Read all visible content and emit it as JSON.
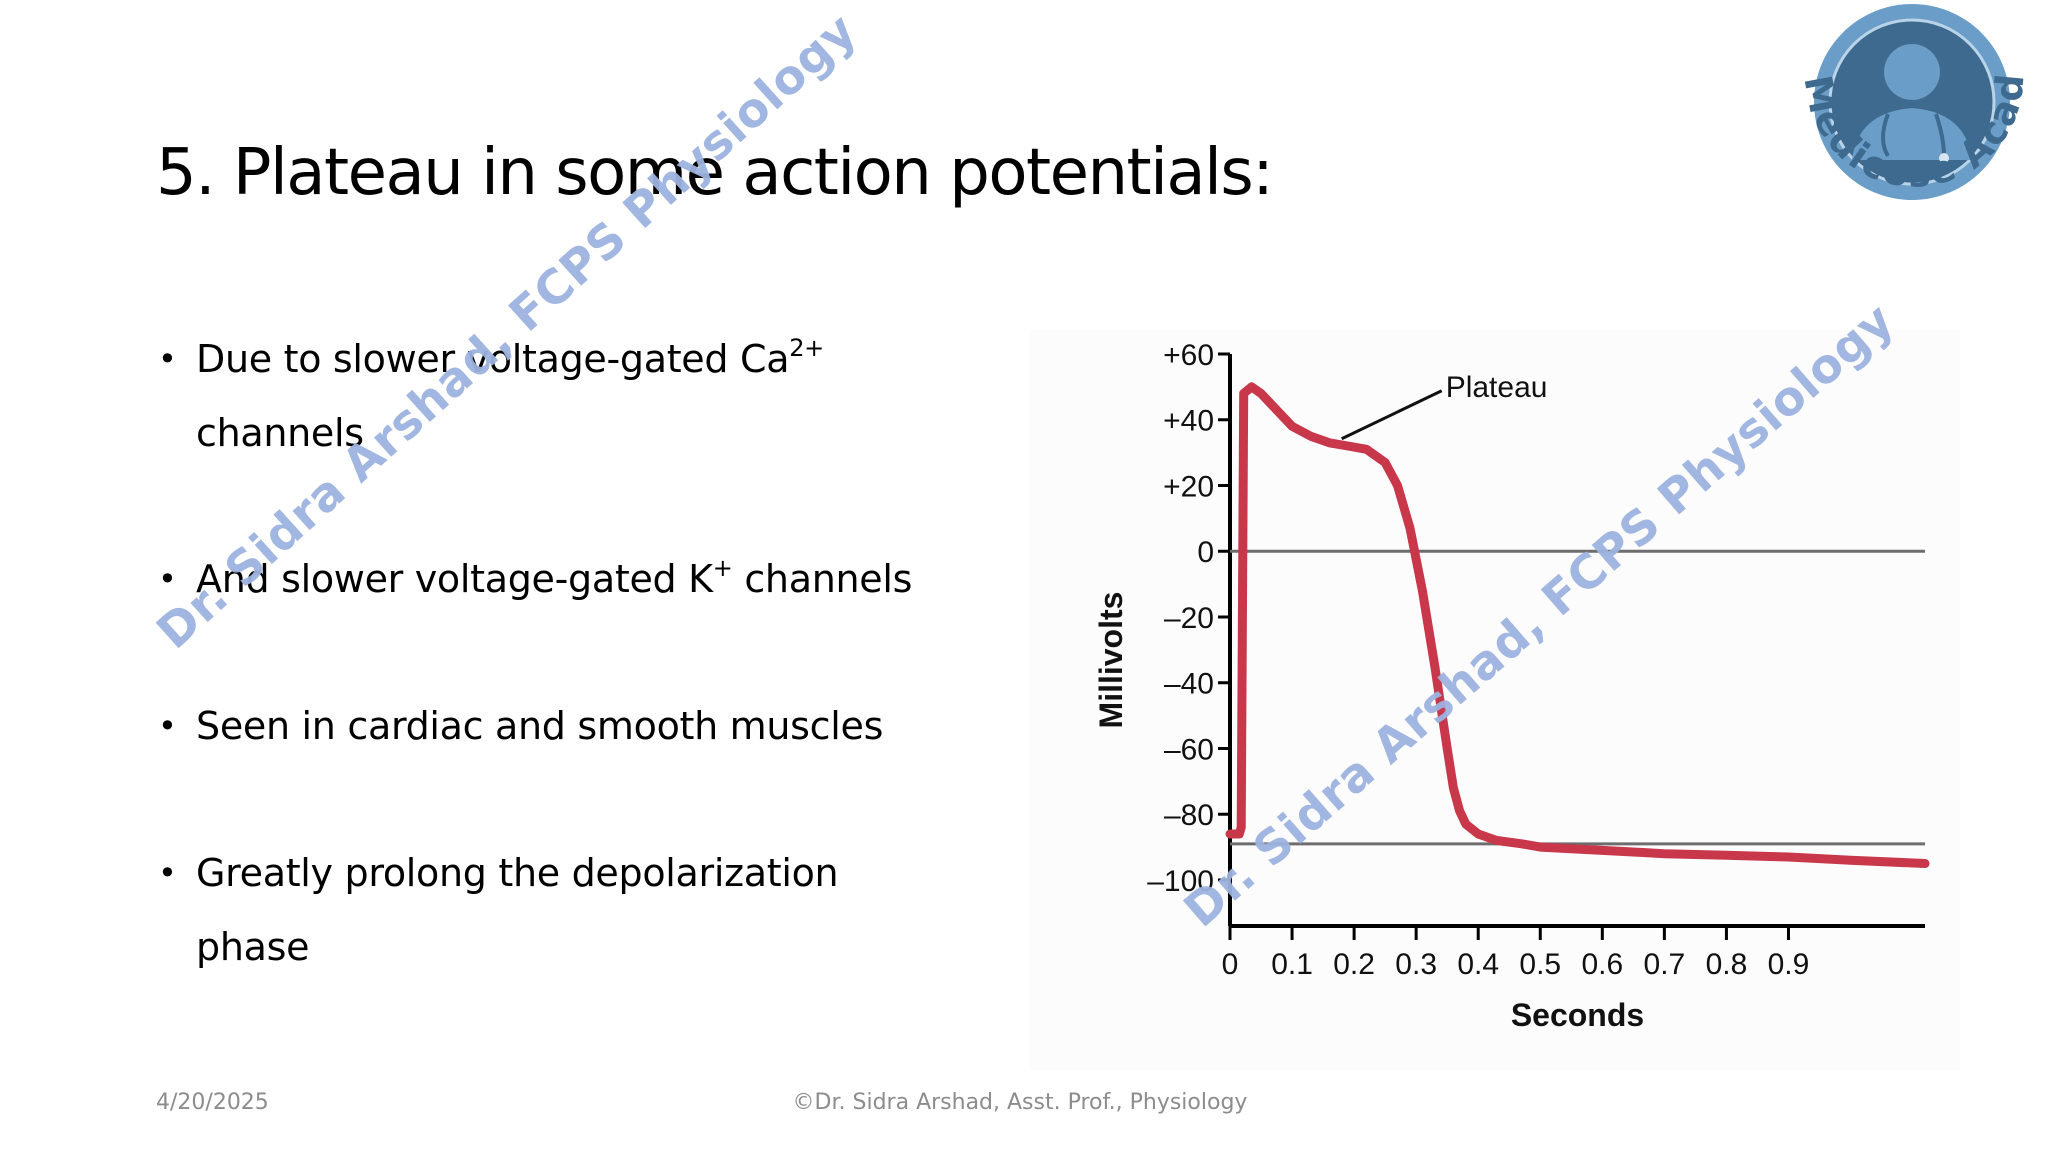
{
  "slide": {
    "title": "5. Plateau in some action potentials:",
    "bullets": [
      {
        "text": "Due to slower voltage-gated Ca",
        "sup": "2+",
        "tail": "",
        "line2": "channels"
      },
      {
        "text": "And slower voltage-gated K",
        "sup": "+",
        "tail": " channels",
        "line2": ""
      },
      {
        "text": "Seen in cardiac and smooth muscles",
        "sup": "",
        "tail": "",
        "line2": ""
      },
      {
        "text": "Greatly prolong the depolarization",
        "sup": "",
        "tail": "",
        "line2": "phase"
      }
    ],
    "footer_date": "4/20/2025",
    "footer_credit": "©Dr. Sidra Arshad, Asst. Prof., Physiology",
    "watermark": "Dr. Sidra Arshad, FCPS Physiology",
    "logo_text": "Medicose Academics"
  },
  "colors": {
    "trace": "#c8374a",
    "reference_line": "#6d6d6d",
    "watermark": "#9db3df",
    "logo_outer": "#6a9ec8",
    "logo_inner": "#3d6a8e"
  },
  "chart_data": {
    "type": "line",
    "xlabel": "Seconds",
    "ylabel": "Millivolts",
    "x_ticks": [
      "0",
      "0.1",
      "0.2",
      "0.3",
      "0.4",
      "0.5",
      "0.6",
      "0.7",
      "0.8",
      "0.9"
    ],
    "y_ticks": [
      "+60",
      "+40",
      "+20",
      "0",
      "–20",
      "–40",
      "–60",
      "–80",
      "–100"
    ],
    "xlim": [
      0,
      1.12
    ],
    "ylim": [
      -114,
      60
    ],
    "reference_lines": [
      0,
      -89
    ],
    "annotation": {
      "text": "Plateau",
      "x": 0.18,
      "y": 33
    },
    "series": [
      {
        "x": [
          0.0,
          0.015,
          0.018,
          0.022,
          0.035,
          0.05,
          0.07,
          0.1,
          0.13,
          0.16,
          0.19,
          0.22,
          0.25,
          0.27,
          0.29,
          0.31,
          0.33,
          0.35,
          0.36,
          0.37,
          0.38,
          0.4,
          0.43,
          0.47,
          0.5,
          0.6,
          0.7,
          0.8,
          0.9,
          1.0,
          1.12
        ],
        "y": [
          -86,
          -86,
          -84,
          48,
          50,
          48,
          44,
          38,
          35,
          33,
          32,
          31,
          27,
          20,
          7,
          -12,
          -35,
          -60,
          -72,
          -79,
          -83,
          -86,
          -88,
          -89,
          -90,
          -91,
          -92,
          -92.5,
          -93,
          -94,
          -95
        ]
      }
    ]
  }
}
